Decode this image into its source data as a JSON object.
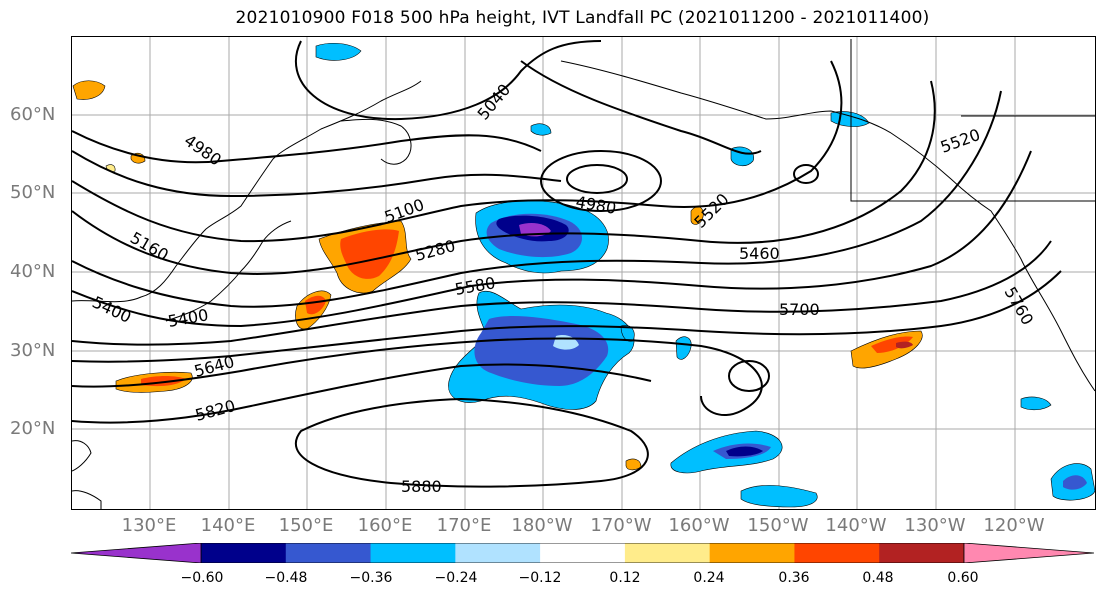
{
  "title": "2021010900 F018 500 hPa height, IVT Landfall PC (2021011200 - 2021011400)",
  "lat_labels": [
    "60°N",
    "50°N",
    "40°N",
    "30°N",
    "20°N"
  ],
  "lon_labels": [
    "130°E",
    "140°E",
    "150°E",
    "160°E",
    "170°E",
    "180°W",
    "170°W",
    "160°W",
    "150°W",
    "140°W",
    "130°W",
    "120°W"
  ],
  "contour_labels": [
    "4980",
    "5040",
    "5100",
    "5160",
    "5280",
    "5400",
    "5460",
    "5520",
    "5580",
    "5640",
    "5700",
    "5760",
    "5820",
    "5880"
  ],
  "colorbar": {
    "ticks": [
      "−0.60",
      "−0.48",
      "−0.36",
      "−0.24",
      "−0.12",
      "0.12",
      "0.24",
      "0.36",
      "0.48",
      "0.60"
    ],
    "colors": [
      "#9932cc",
      "#00008b",
      "#3658d0",
      "#00bfff",
      "#b0e2ff",
      "#ffffff",
      "#ffec8b",
      "#ffa500",
      "#ff4500",
      "#b22222",
      "#ff88b0"
    ]
  }
}
